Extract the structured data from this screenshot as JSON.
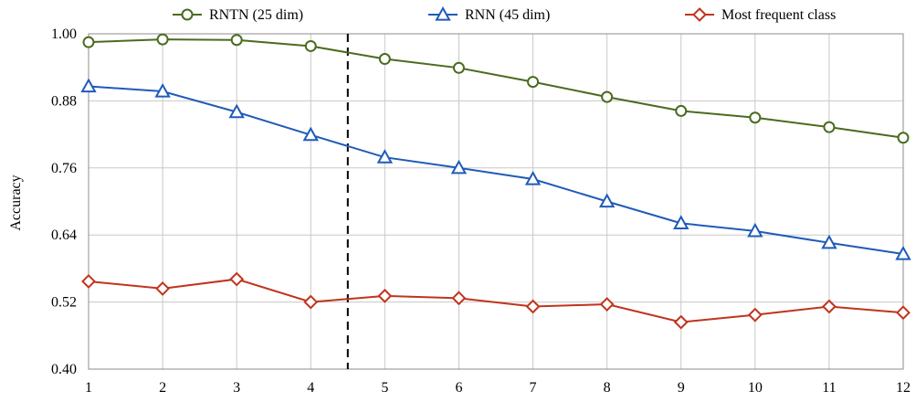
{
  "chart_data": {
    "type": "line",
    "ylabel": "Accuracy",
    "xlabel": "",
    "x": [
      1,
      2,
      3,
      4,
      5,
      6,
      7,
      8,
      9,
      10,
      11,
      12
    ],
    "xlim": [
      1,
      12
    ],
    "ylim": [
      0.4,
      1.0
    ],
    "yticks": [
      "0.40",
      "0.52",
      "0.64",
      "0.76",
      "0.88",
      "1.00"
    ],
    "xticks": [
      "1",
      "2",
      "3",
      "4",
      "5",
      "6",
      "7",
      "8",
      "9",
      "10",
      "11",
      "12"
    ],
    "grid": true,
    "legend_position": "top",
    "reference_line": {
      "style": "dashed",
      "x": 4.5
    },
    "series": [
      {
        "name": "RNTN (25 dim)",
        "color": "#4a6b1f",
        "marker": "circle",
        "values": [
          0.985,
          0.99,
          0.989,
          0.978,
          0.955,
          0.939,
          0.914,
          0.887,
          0.862,
          0.85,
          0.833,
          0.814
        ]
      },
      {
        "name": "RNN (45 dim)",
        "color": "#1f5bb8",
        "marker": "triangle",
        "values": [
          0.906,
          0.897,
          0.86,
          0.819,
          0.779,
          0.76,
          0.74,
          0.7,
          0.661,
          0.647,
          0.626,
          0.606
        ]
      },
      {
        "name": "Most frequent class",
        "color": "#c0341d",
        "marker": "diamond",
        "values": [
          0.557,
          0.544,
          0.561,
          0.52,
          0.531,
          0.527,
          0.512,
          0.516,
          0.484,
          0.497,
          0.512,
          0.501
        ]
      }
    ]
  }
}
